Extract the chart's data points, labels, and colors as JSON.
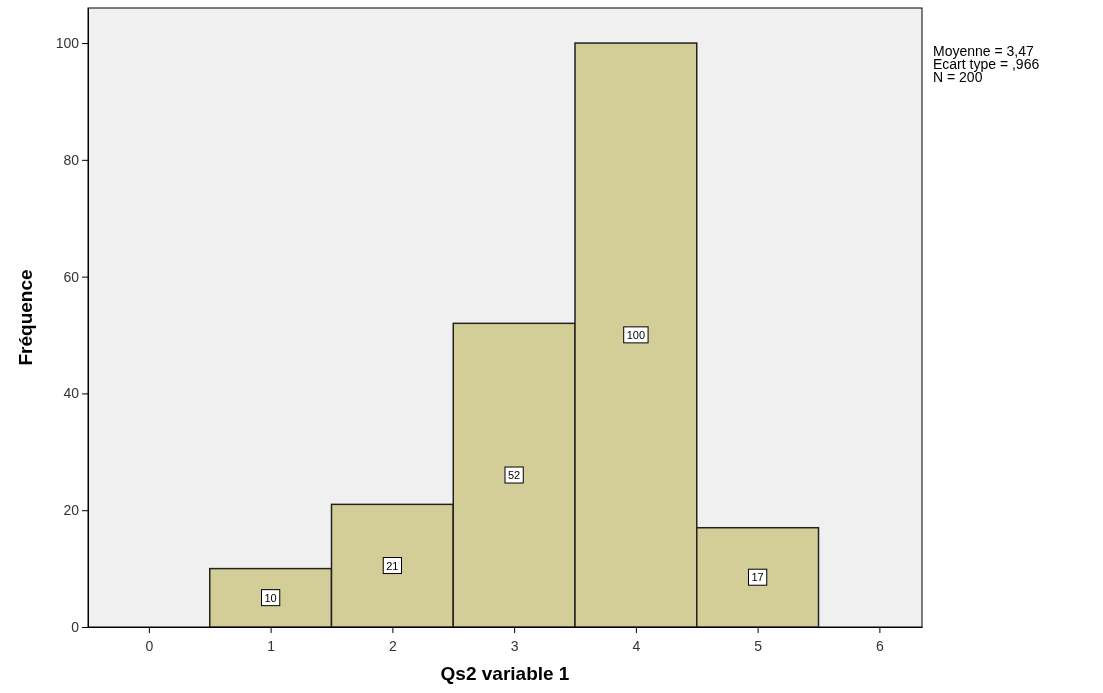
{
  "chart_data": {
    "type": "histogram",
    "xlabel": "Qs2 variable 1",
    "ylabel": "Fréquence",
    "bins": [
      0.5,
      1.5,
      2.5,
      3.5,
      4.5,
      5.5
    ],
    "values": [
      10,
      21,
      52,
      100,
      17
    ],
    "color": "#d3ce97",
    "xlim": [
      -0.5,
      6.35
    ],
    "xticks": [
      0,
      1,
      2,
      3,
      4,
      5,
      6
    ],
    "ylim": [
      0,
      106
    ],
    "yticks": [
      0,
      20,
      40,
      60,
      80,
      100
    ],
    "data_labels": true,
    "grid": false,
    "annotations": [
      "Moyenne = 3,47",
      "Ecart type = ,966",
      "N = 200"
    ]
  }
}
